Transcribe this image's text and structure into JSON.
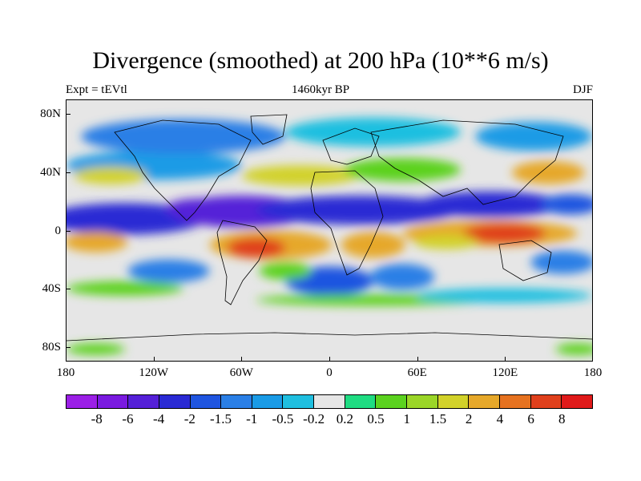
{
  "title": "Divergence (smoothed) at 200 hPa (10**6 m/s)",
  "subtitle": {
    "left": "Expt = tEVtl",
    "center": "1460kyr BP",
    "right": "DJF"
  },
  "map": {
    "projection": "cylindrical equidistant",
    "lon_range": [
      -180,
      180
    ],
    "lat_range": [
      -90,
      90
    ],
    "background_color": "#e6e6e6",
    "lat_labels": [
      {
        "lat": 80,
        "label": "80N"
      },
      {
        "lat": 40,
        "label": "40N"
      },
      {
        "lat": 0,
        "label": "0"
      },
      {
        "lat": -40,
        "label": "40S"
      },
      {
        "lat": -80,
        "label": "80S"
      }
    ],
    "lon_labels": [
      {
        "lon": -180,
        "label": "180"
      },
      {
        "lon": -120,
        "label": "120W"
      },
      {
        "lon": -60,
        "label": "60W"
      },
      {
        "lon": 0,
        "label": "0"
      },
      {
        "lon": 60,
        "label": "60E"
      },
      {
        "lon": 120,
        "label": "120E"
      },
      {
        "lon": 180,
        "label": "180"
      }
    ]
  },
  "colorbar": {
    "colors": [
      "#9b1fe6",
      "#7a1ae0",
      "#5520d8",
      "#2a2ad4",
      "#1f55e0",
      "#2a7fe6",
      "#1a9be6",
      "#1fbfe0",
      "#e6e6e6",
      "#1fdc82",
      "#5bd21f",
      "#9bd628",
      "#d2d22a",
      "#e6a82a",
      "#e67220",
      "#e0401c",
      "#e01a1a"
    ],
    "labels": [
      "-8",
      "-6",
      "-4",
      "-2",
      "-1.5",
      "-1",
      "-0.5",
      "-0.2",
      "0.2",
      "0.5",
      "1",
      "1.5",
      "2",
      "4",
      "6",
      "8"
    ]
  },
  "field_regions": [
    {
      "lon": -140,
      "lat": 8,
      "rx": 55,
      "ry": 11,
      "value": -3
    },
    {
      "lon": -60,
      "lat": 13,
      "rx": 48,
      "ry": 11,
      "value": -4.5
    },
    {
      "lon": -90,
      "lat": 15,
      "rx": 22,
      "ry": 7,
      "value": -6
    },
    {
      "lon": 20,
      "lat": 14,
      "rx": 70,
      "ry": 10,
      "value": -3
    },
    {
      "lon": 110,
      "lat": 18,
      "rx": 50,
      "ry": 9,
      "value": -3
    },
    {
      "lon": 165,
      "lat": 18,
      "rx": 20,
      "ry": 7,
      "value": -2
    },
    {
      "lon": -40,
      "lat": -10,
      "rx": 42,
      "ry": 10,
      "value": 3
    },
    {
      "lon": -50,
      "lat": -12,
      "rx": 20,
      "ry": 7,
      "value": 6
    },
    {
      "lon": -160,
      "lat": -8,
      "rx": 22,
      "ry": 7,
      "value": 2
    },
    {
      "lon": 30,
      "lat": -10,
      "rx": 22,
      "ry": 9,
      "value": 3
    },
    {
      "lon": 110,
      "lat": -2,
      "rx": 60,
      "ry": 9,
      "value": 3
    },
    {
      "lon": 120,
      "lat": -2,
      "rx": 28,
      "ry": 7,
      "value": 6
    },
    {
      "lon": 80,
      "lat": -8,
      "rx": 22,
      "ry": 5,
      "value": 1.5
    },
    {
      "lon": -110,
      "lat": -28,
      "rx": 28,
      "ry": 8,
      "value": -1.5
    },
    {
      "lon": 0,
      "lat": -35,
      "rx": 30,
      "ry": 10,
      "value": -2
    },
    {
      "lon": -30,
      "lat": -28,
      "rx": 18,
      "ry": 6,
      "value": 0.5
    },
    {
      "lon": 50,
      "lat": -32,
      "rx": 22,
      "ry": 9,
      "value": -1.5
    },
    {
      "lon": 160,
      "lat": -22,
      "rx": 22,
      "ry": 8,
      "value": -1.5
    },
    {
      "lon": -140,
      "lat": -40,
      "rx": 40,
      "ry": 5,
      "value": 0.5
    },
    {
      "lon": 30,
      "lat": -48,
      "rx": 80,
      "ry": 4,
      "value": 0.5
    },
    {
      "lon": 120,
      "lat": -45,
      "rx": 60,
      "ry": 5,
      "value": -0.5
    },
    {
      "lon": -120,
      "lat": 45,
      "rx": 60,
      "ry": 10,
      "value": -1
    },
    {
      "lon": -150,
      "lat": 38,
      "rx": 25,
      "ry": 6,
      "value": 1.5
    },
    {
      "lon": -20,
      "lat": 38,
      "rx": 40,
      "ry": 7,
      "value": 1.5
    },
    {
      "lon": 50,
      "lat": 42,
      "rx": 40,
      "ry": 8,
      "value": 0.5
    },
    {
      "lon": 150,
      "lat": 40,
      "rx": 25,
      "ry": 8,
      "value": 2
    },
    {
      "lon": -100,
      "lat": 65,
      "rx": 70,
      "ry": 12,
      "value": -1.5
    },
    {
      "lon": 30,
      "lat": 68,
      "rx": 60,
      "ry": 10,
      "value": -0.5
    },
    {
      "lon": 140,
      "lat": 65,
      "rx": 40,
      "ry": 10,
      "value": -1
    },
    {
      "lon": -160,
      "lat": -82,
      "rx": 20,
      "ry": 4,
      "value": 0.5
    },
    {
      "lon": 170,
      "lat": -82,
      "rx": 15,
      "ry": 4,
      "value": 0.5
    }
  ]
}
